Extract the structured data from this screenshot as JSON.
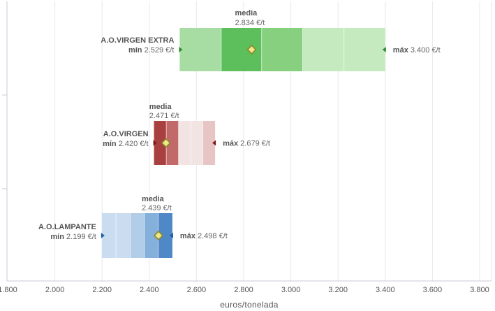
{
  "chart_data": {
    "type": "range-bar",
    "xlabel": "euros/tonelada",
    "xlim": [
      1800,
      3800
    ],
    "xticks": [
      "1.800",
      "2.000",
      "2.200",
      "2.400",
      "2.600",
      "2.800",
      "3.000",
      "3.200",
      "3.400",
      "3.600",
      "3.800"
    ],
    "xtick_values": [
      1800,
      2000,
      2200,
      2400,
      2600,
      2800,
      3000,
      3200,
      3400,
      3600,
      3800
    ],
    "grid": true,
    "series": [
      {
        "name": "A.O.VIRGEN EXTRA",
        "min": 2529,
        "max": 3400,
        "mean": 2834,
        "min_label": "mín",
        "min_value": "2.529 €/t",
        "max_label": "máx",
        "max_value": "3.400 €/t",
        "mean_label": "media",
        "mean_value": "2.834 €/t",
        "segments": [
          2529,
          2705,
          2876,
          3050,
          3225,
          3400
        ],
        "segment_colors": [
          "#a7dca2",
          "#5cbf5c",
          "#86d07f",
          "#c5eac0",
          "#c5eac0"
        ],
        "marker_color": "#2e8b2e"
      },
      {
        "name": "A.O.VIRGEN",
        "min": 2420,
        "max": 2679,
        "mean": 2471,
        "min_label": "mín",
        "min_value": "2.420 €/t",
        "max_label": "máx",
        "max_value": "2.679 €/t",
        "mean_label": "media",
        "mean_value": "2.471 €/t",
        "segments": [
          2420,
          2472,
          2524,
          2576,
          2627,
          2679
        ],
        "segment_colors": [
          "#a94040",
          "#c26a6a",
          "#f3e4e4",
          "#f3e4e4",
          "#e8c5c5"
        ],
        "marker_color": "#7a1a1a"
      },
      {
        "name": "A.O.LAMPANTE",
        "min": 2199,
        "max": 2498,
        "mean": 2439,
        "min_label": "mín",
        "min_value": "2.199 €/t",
        "max_label": "máx",
        "max_value": "2.498 €/t",
        "mean_label": "media",
        "mean_value": "2.439 €/t",
        "segments": [
          2199,
          2259,
          2319,
          2379,
          2438,
          2498
        ],
        "segment_colors": [
          "#c9dcf0",
          "#c9dcf0",
          "#b2cde8",
          "#86b0dc",
          "#4f88c6"
        ],
        "marker_color": "#1f5d9e"
      }
    ],
    "mean_marker_fill": "#f0e68c",
    "mean_marker_stroke": "#8a8a2a"
  }
}
